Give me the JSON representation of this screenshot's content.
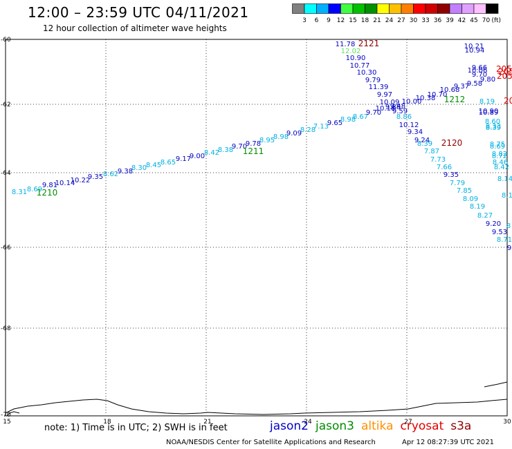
{
  "header": {
    "title": "12:00 – 23:59 UTC 04/11/2021",
    "subtitle": "12 hour collection of altimeter wave heights"
  },
  "legend": {
    "unit": "(ft)",
    "bins": [
      {
        "label": "3",
        "color": "#808080"
      },
      {
        "label": "6",
        "color": "#00ffff"
      },
      {
        "label": "9",
        "color": "#00b0ff"
      },
      {
        "label": "12",
        "color": "#0000ff"
      },
      {
        "label": "15",
        "color": "#40ff40"
      },
      {
        "label": "18",
        "color": "#00c000"
      },
      {
        "label": "21",
        "color": "#009000"
      },
      {
        "label": "24",
        "color": "#ffff00"
      },
      {
        "label": "27",
        "color": "#ffc000"
      },
      {
        "label": "30",
        "color": "#ff8000"
      },
      {
        "label": "33",
        "color": "#ff0000"
      },
      {
        "label": "36",
        "color": "#d00000"
      },
      {
        "label": "39",
        "color": "#900000"
      },
      {
        "label": "42",
        "color": "#c080ff"
      },
      {
        "label": "45",
        "color": "#e0a0ff"
      },
      {
        "label": "70",
        "color": "#ffc0ff"
      },
      {
        "label": "",
        "color": "#000000"
      }
    ]
  },
  "axes": {
    "lon_labels": [
      "15",
      "18",
      "21",
      "24",
      "27",
      "30"
    ],
    "lat_labels": [
      "-60",
      "-62",
      "-64",
      "-66",
      "-68",
      "-70"
    ]
  },
  "tracks": {
    "t1": {
      "name": "1210",
      "name2": "1211",
      "name3": "1212",
      "values": [
        "8.31",
        "8.69",
        "9.81",
        "10.14",
        "10.22",
        "9.35",
        "8.62",
        "9.38",
        "8.30",
        "8.45",
        "8.65",
        "9.17",
        "9.00",
        "8.42",
        "8.38",
        "9.70",
        "9.78",
        "8.95",
        "8.98",
        "9.09",
        "8.28",
        "7.13",
        "9.65",
        "8.98",
        "8.67",
        "9.70",
        "10.18",
        "9.48",
        "10.00",
        "10.38",
        "10.70",
        "10.68",
        "9.37",
        "9.58",
        "9.80",
        "9.70",
        "10.06",
        "9.66",
        "10.94",
        "10.21"
      ]
    },
    "t2": {
      "name": "2121",
      "name2": "2120",
      "values": [
        "11.78",
        "12.02",
        "10.90",
        "10.77",
        "10.30",
        "9.79",
        "11.39",
        "9.97",
        "10.09",
        "9.88",
        "9.59",
        "8.86",
        "10.12",
        "9.34",
        "9.24",
        "8.39",
        "7.87",
        "7.73",
        "7.66",
        "9.35",
        "7.79",
        "7.85",
        "8.09",
        "8.19",
        "8.27",
        "9.20",
        "9.53",
        "8.71"
      ]
    },
    "right_edge": [
      "8.19",
      "10.90",
      "10.89",
      "8.60",
      "8.33",
      "8.39",
      "8.75",
      "8.69",
      "8.82",
      "8.72",
      "8.46",
      "8.42",
      "8.14",
      "8.1",
      "8",
      "9"
    ],
    "cryosat_labels": [
      "205",
      "205",
      "205",
      "20"
    ]
  },
  "footer": {
    "note": "note: 1) Time is in UTC; 2) SWH is in feet",
    "sats": [
      {
        "label": "jason2",
        "color": "#0000c8"
      },
      {
        "label": "jason3",
        "color": "#008c00"
      },
      {
        "label": "altika",
        "color": "#ff9000"
      },
      {
        "label": "cryosat",
        "color": "#e00000"
      },
      {
        "label": "s3a",
        "color": "#900000"
      }
    ],
    "credit": "NOAA/NESDIS Center for Satellite Applications and Research",
    "timestamp": "Apr 12 08:27:39 UTC 2021"
  }
}
